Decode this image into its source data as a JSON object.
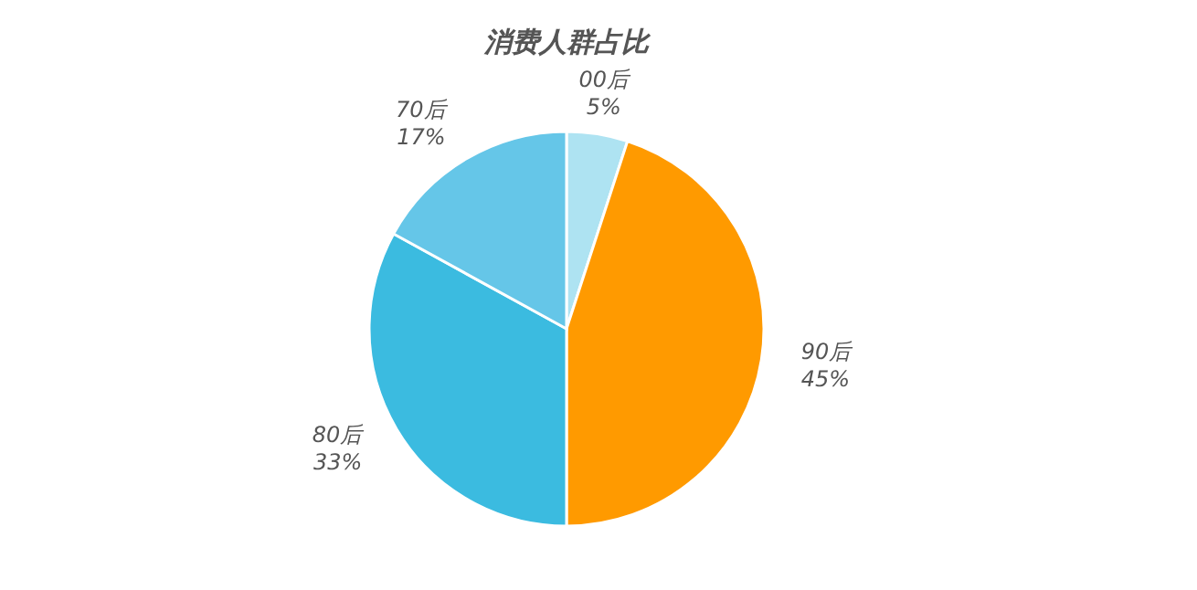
{
  "chart_data": {
    "type": "pie",
    "title": "消费人群占比",
    "categories": [
      "00后",
      "90后",
      "80后",
      "70后"
    ],
    "values": [
      5,
      45,
      33,
      17
    ],
    "value_labels": [
      "5%",
      "45%",
      "33%",
      "17%"
    ],
    "colors": [
      "#aee3f2",
      "#ff9a00",
      "#3bbbe0",
      "#65c6e8"
    ]
  }
}
